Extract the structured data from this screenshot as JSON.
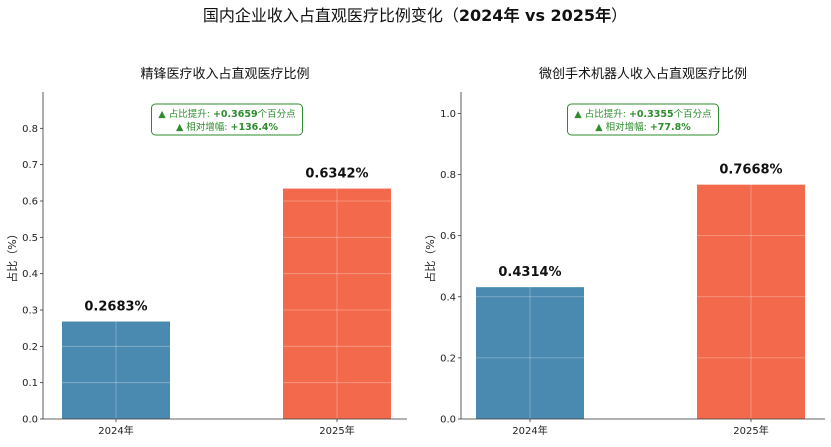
{
  "figure": {
    "title_prefix": "国内企业收入占直观医疗比例变化（",
    "title_bold": "2024年 vs 2025年",
    "title_suffix": "）"
  },
  "chart_data": [
    {
      "type": "bar",
      "title": "精锋医疗收入占直观医疗比例",
      "categories": [
        "2024年",
        "2025年"
      ],
      "values": [
        0.2683,
        0.6342
      ],
      "value_labels": [
        "0.2683%",
        "0.6342%"
      ],
      "xlabel": "",
      "ylabel": "占比（%）",
      "ylim": [
        0,
        0.9
      ],
      "yticks": [
        0.0,
        0.1,
        0.2,
        0.3,
        0.4,
        0.5,
        0.6,
        0.7,
        0.8
      ],
      "ytick_labels": [
        "0.0",
        "0.1",
        "0.2",
        "0.3",
        "0.4",
        "0.5",
        "0.6",
        "0.7",
        "0.8"
      ],
      "colors": [
        "#4a89b0",
        "#f26a4b"
      ],
      "grid": true,
      "annotation": {
        "line1_label": "▲ 占比提升: ",
        "line1_value": "+0.3659",
        "line1_unit": "个百分点",
        "line2_label": "▲ 相对增幅: ",
        "line2_value": "+136.4%"
      }
    },
    {
      "type": "bar",
      "title": "微创手术机器人收入占直观医疗比例",
      "categories": [
        "2024年",
        "2025年"
      ],
      "values": [
        0.4314,
        0.7668
      ],
      "value_labels": [
        "0.4314%",
        "0.7668%"
      ],
      "xlabel": "",
      "ylabel": "占比（%）",
      "ylim": [
        0,
        1.07
      ],
      "yticks": [
        0.0,
        0.2,
        0.4,
        0.6,
        0.8,
        1.0
      ],
      "ytick_labels": [
        "0.0",
        "0.2",
        "0.4",
        "0.6",
        "0.8",
        "1.0"
      ],
      "colors": [
        "#4a89b0",
        "#f26a4b"
      ],
      "grid": true,
      "annotation": {
        "line1_label": "▲ 占比提升: ",
        "line1_value": "+0.3355",
        "line1_unit": "个百分点",
        "line2_label": "▲ 相对增幅: ",
        "line2_value": "+77.8%"
      }
    }
  ]
}
